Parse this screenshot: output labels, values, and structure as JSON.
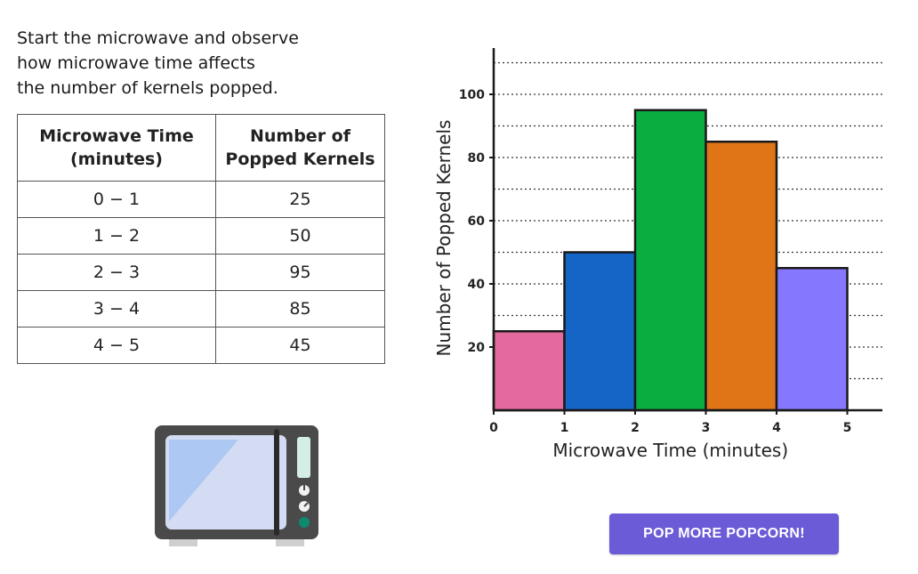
{
  "instructions": [
    "Start the microwave and observe",
    "how microwave time affects",
    "the number of kernels popped."
  ],
  "table": {
    "headers": [
      [
        "Microwave Time",
        "(minutes)"
      ],
      [
        "Number of",
        "Popped Kernels"
      ]
    ],
    "rows": [
      [
        "0 − 1",
        "25"
      ],
      [
        "1 − 2",
        "50"
      ],
      [
        "2 − 3",
        "95"
      ],
      [
        "3 − 4",
        "85"
      ],
      [
        "4 − 5",
        "45"
      ]
    ]
  },
  "button": {
    "label": "POP MORE POPCORN!",
    "color": "#6b5bd6"
  },
  "microwave": {
    "icon": "microwave-icon"
  },
  "chart_data": {
    "type": "bar",
    "subtype": "histogram",
    "bins": [
      [
        0,
        1
      ],
      [
        1,
        2
      ],
      [
        2,
        3
      ],
      [
        3,
        4
      ],
      [
        4,
        5
      ]
    ],
    "values": [
      25,
      50,
      95,
      85,
      45
    ],
    "colors": [
      "#e4699f",
      "#1565c7",
      "#0aad3f",
      "#e07518",
      "#8677ff"
    ],
    "xlabel": "Microwave Time (minutes)",
    "ylabel": "Number of Popped Kernels",
    "x_ticks": [
      0,
      1,
      2,
      3,
      4,
      5
    ],
    "y_ticks": [
      20,
      40,
      60,
      80,
      100
    ],
    "xlim": [
      0,
      5.5
    ],
    "ylim": [
      0,
      115
    ],
    "grid": "horizontal dotted every 10"
  }
}
